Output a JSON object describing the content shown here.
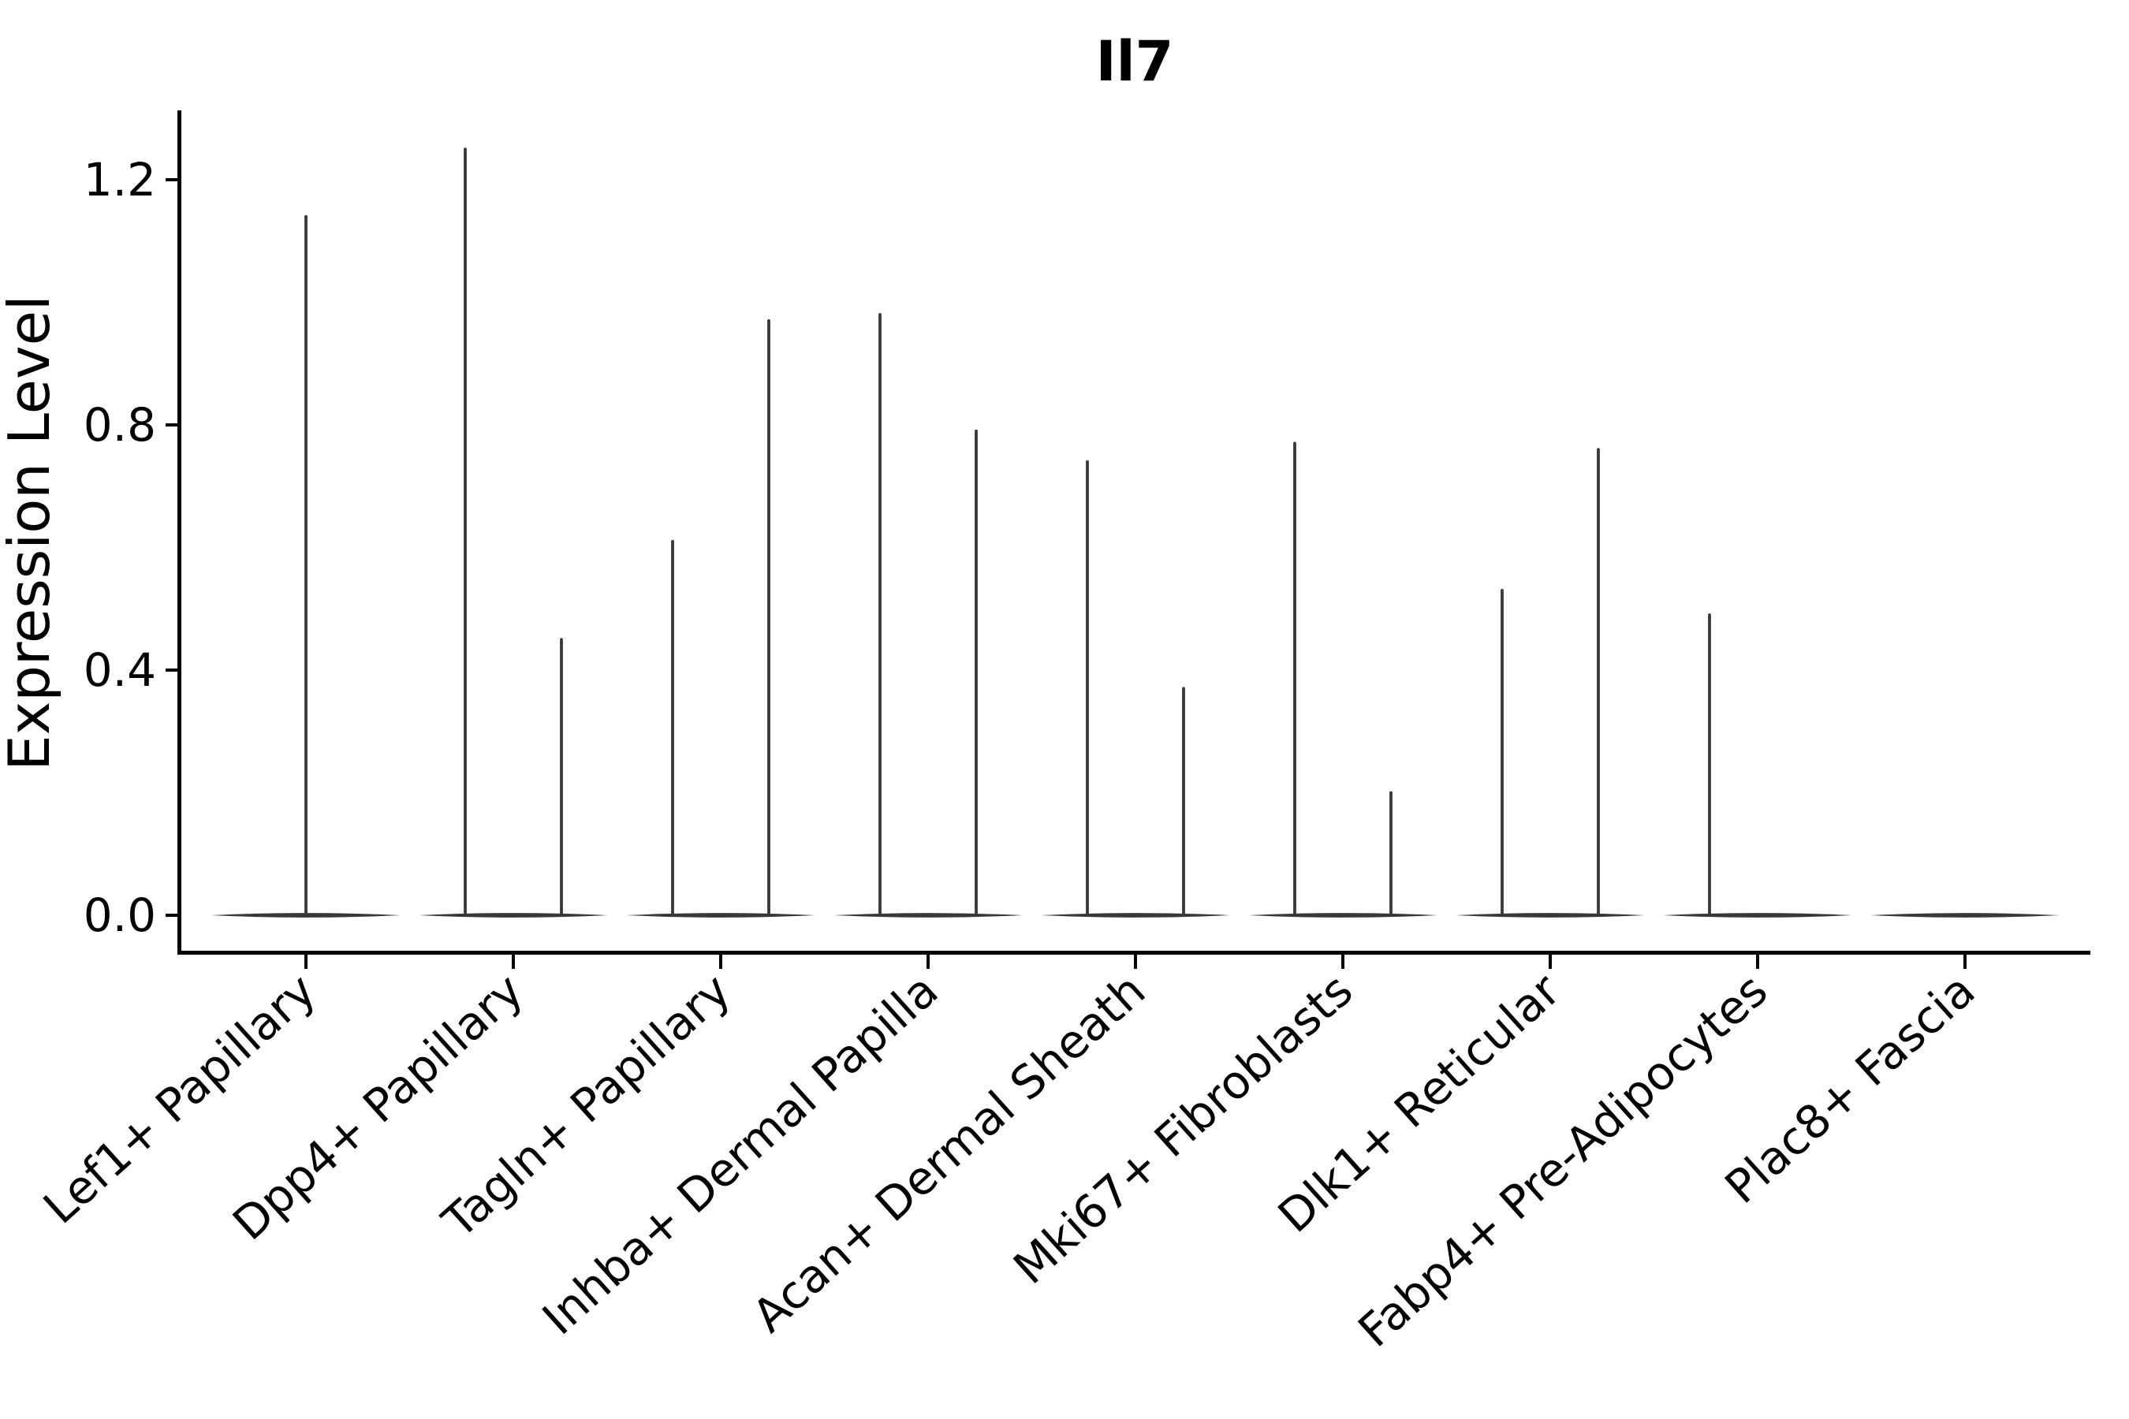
{
  "chart_data": {
    "type": "violin",
    "title": "Il7",
    "ylabel": "Expression Level",
    "xlabel": "",
    "yticks": [
      0.0,
      0.4,
      0.8,
      1.2
    ],
    "ytick_labels": [
      "0.0",
      "0.4",
      "0.8",
      "1.2"
    ],
    "ylim": [
      -0.06,
      1.31
    ],
    "grid": false,
    "legend_position": "none",
    "categories": [
      "Lef1+ Papillary",
      "Dpp4+ Papillary",
      "Tagln+ Papillary",
      "Inhba+ Dermal Papilla",
      "Acan+ Dermal Sheath",
      "Mki67+ Fibroblasts",
      "Dlk1+ Reticular",
      "Fabp4+ Pre-Adipocytes",
      "Plac8+ Fascia"
    ],
    "groups": [
      {
        "category": "Lef1+ Papillary",
        "max_values": [
          1.14
        ]
      },
      {
        "category": "Dpp4+ Papillary",
        "max_values": [
          1.25,
          0.45
        ]
      },
      {
        "category": "Tagln+ Papillary",
        "max_values": [
          0.61,
          0.97
        ]
      },
      {
        "category": "Inhba+ Dermal Papilla",
        "max_values": [
          0.98,
          0.79
        ]
      },
      {
        "category": "Acan+ Dermal Sheath",
        "max_values": [
          0.74,
          0.37
        ]
      },
      {
        "category": "Mki67+ Fibroblasts",
        "max_values": [
          0.77,
          0.2
        ]
      },
      {
        "category": "Dlk1+ Reticular",
        "max_values": [
          0.53,
          0.76
        ]
      },
      {
        "category": "Fabp4+ Pre-Adipocytes",
        "max_values": [
          0.49,
          0.0
        ]
      },
      {
        "category": "Plac8+ Fascia",
        "max_values": [
          0.0
        ]
      }
    ],
    "violin_description": "Each group is a violin collapsed to a flat line at 0 expression with thin spikes rising to the group's maximum expression value(s).",
    "colors": {
      "violin_stroke": "#383838",
      "axis": "#000000",
      "text": "#000000",
      "background": "#ffffff"
    }
  }
}
